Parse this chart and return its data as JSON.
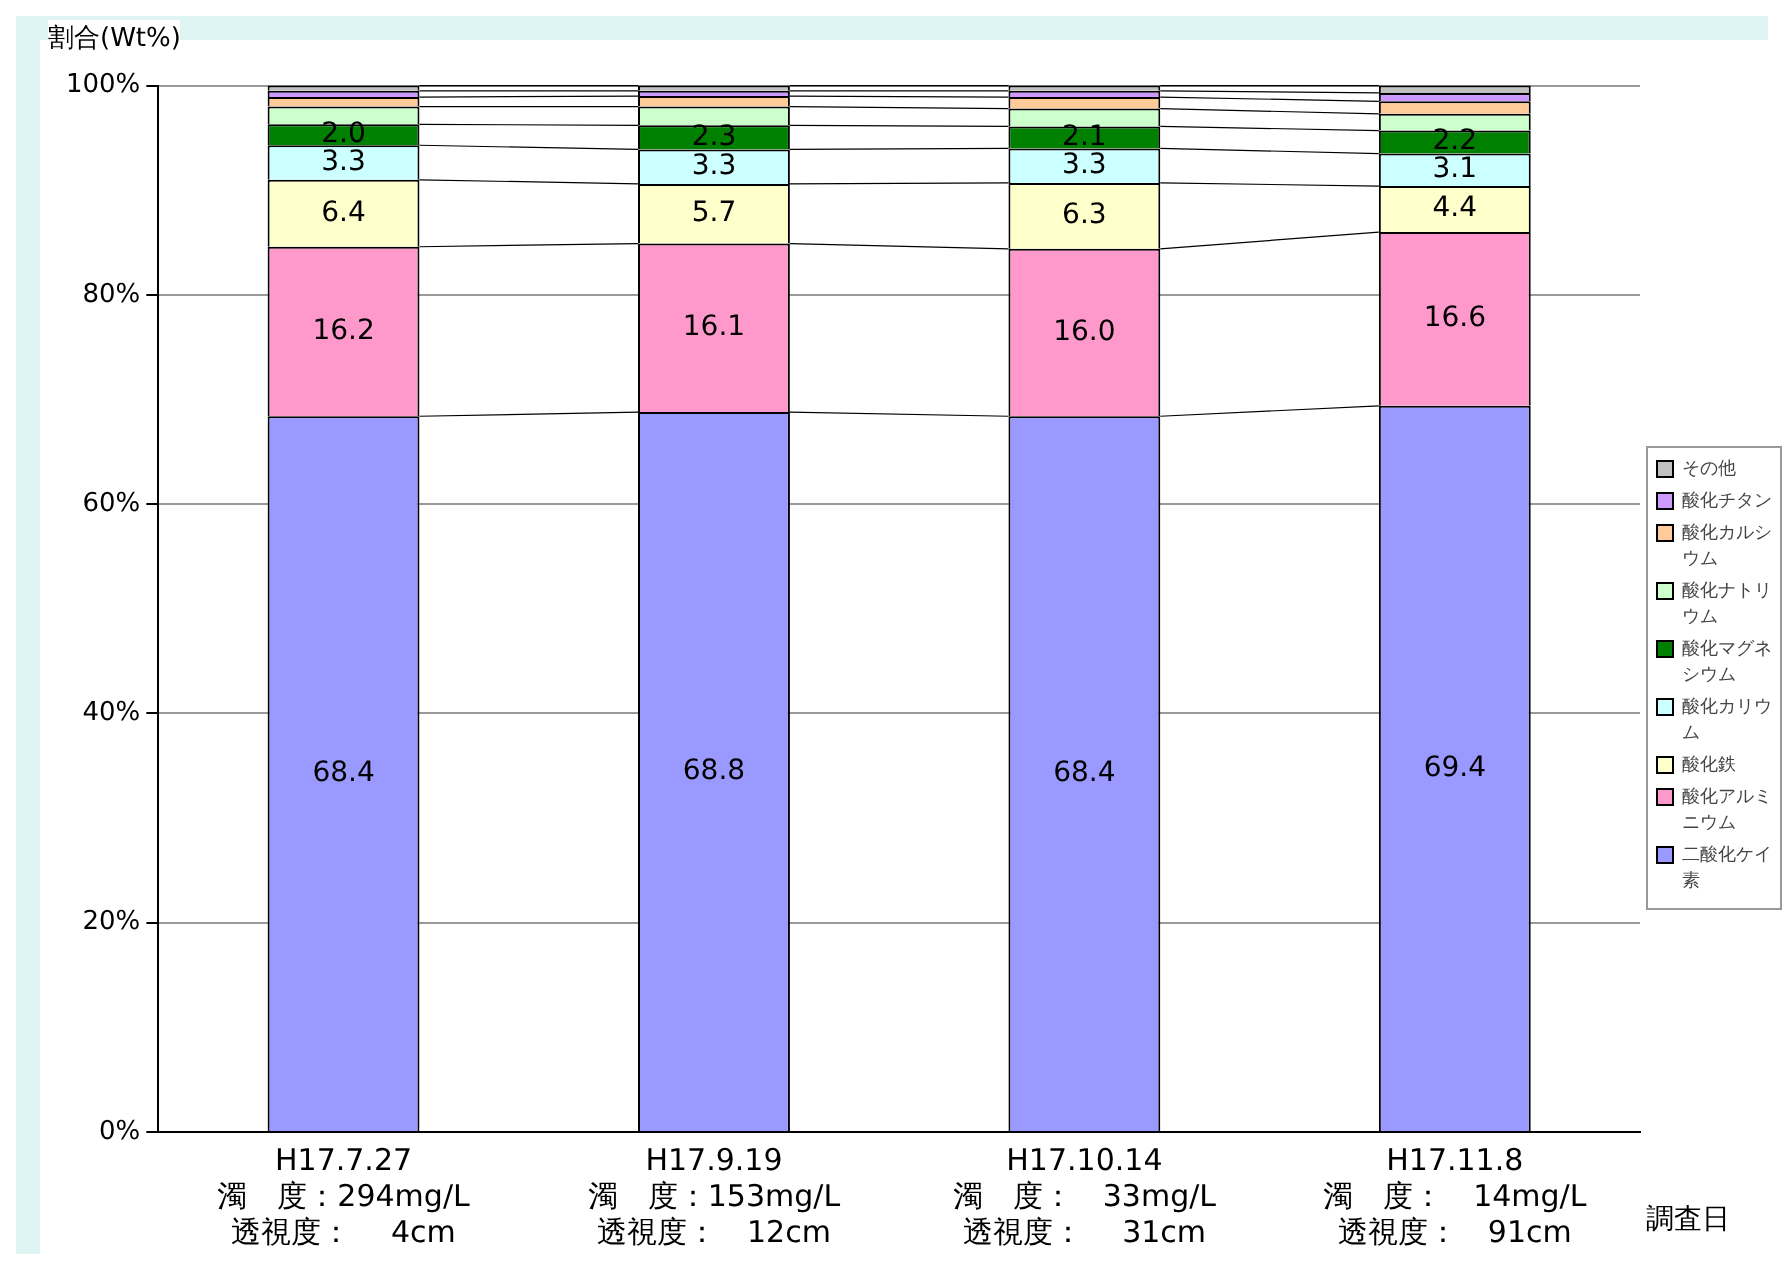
{
  "chart_data": {
    "type": "bar",
    "stacked": true,
    "ylabel": "割合(Wt%)",
    "xlabel": "調査日",
    "categories": [
      "H17.7.27\n濁　度：294mg/L\n透視度：　 4cm",
      "H17.9.19\n濁　度：153mg/L\n透視度：　12cm",
      "H17.10.14\n濁　度：　33mg/L\n透視度：　 31cm",
      "H17.11.8\n濁　度：　14mg/L\n透視度：　91cm"
    ],
    "ylim": [
      0,
      100
    ],
    "yticks": [
      {
        "value": 0,
        "label": "0%"
      },
      {
        "value": 20,
        "label": "20%"
      },
      {
        "value": 40,
        "label": "40%"
      },
      {
        "value": 60,
        "label": "60%"
      },
      {
        "value": 80,
        "label": "80%"
      },
      {
        "value": 100,
        "label": "100%"
      }
    ],
    "grid": "y",
    "legend": "right",
    "series": [
      {
        "name": "二酸化ケイ素",
        "color": "#9999ff",
        "values": [
          68.4,
          68.8,
          68.4,
          69.4
        ],
        "value_labels": [
          "68.4",
          "68.8",
          "68.4",
          "69.4"
        ]
      },
      {
        "name": "酸化アルミニウム",
        "color": "#ff99cc",
        "values": [
          16.2,
          16.1,
          16.0,
          16.6
        ],
        "value_labels": [
          "16.2",
          "16.1",
          "16.0",
          "16.6"
        ]
      },
      {
        "name": "酸化鉄",
        "color": "#ffffcc",
        "values": [
          6.4,
          5.7,
          6.3,
          4.4
        ],
        "value_labels": [
          "6.4",
          "5.7",
          "6.3",
          "4.4"
        ]
      },
      {
        "name": "酸化カリウム",
        "color": "#ccffff",
        "values": [
          3.3,
          3.3,
          3.3,
          3.1
        ],
        "value_labels": [
          "3.3",
          "3.3",
          "3.3",
          "3.1"
        ]
      },
      {
        "name": "酸化マグネシウム",
        "color": "#008000",
        "values": [
          2.0,
          2.3,
          2.1,
          2.2
        ],
        "value_labels": [
          "2.0",
          "2.3",
          "2.1",
          "2.2"
        ]
      },
      {
        "name": "酸化ナトリウム",
        "color": "#ccffcc",
        "values": [
          1.7,
          1.8,
          1.7,
          1.6
        ]
      },
      {
        "name": "酸化カルシウム",
        "color": "#ffcc99",
        "values": [
          0.9,
          1.0,
          1.1,
          1.2
        ]
      },
      {
        "name": "酸化チタン",
        "color": "#cc99ff",
        "values": [
          0.6,
          0.5,
          0.6,
          0.8
        ]
      },
      {
        "name": "その他",
        "color": "#c0c0c0",
        "values": [
          0.5,
          0.5,
          0.5,
          0.7
        ]
      }
    ]
  }
}
